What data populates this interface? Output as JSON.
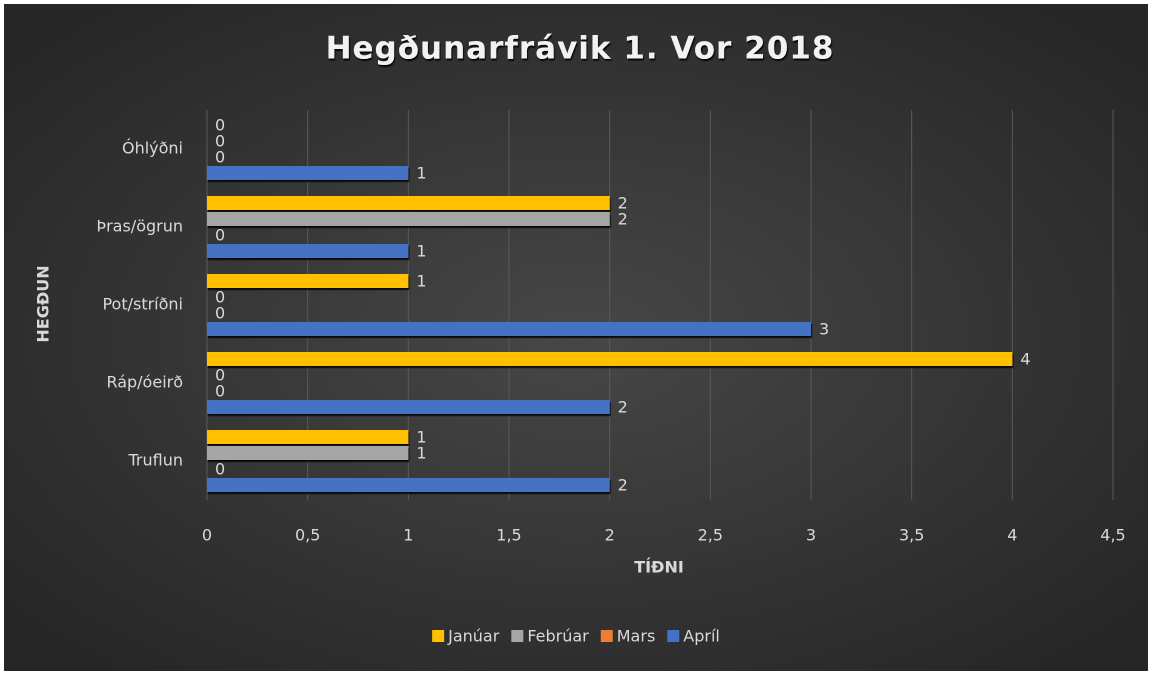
{
  "chart_data": {
    "type": "bar",
    "orientation": "horizontal",
    "title": "Hegðunarfrávik 1. Vor 2018",
    "x_label": "TÍÐNI",
    "y_label": "HEGÐUN",
    "categories": [
      "Truflun",
      "Ráp/óeirð",
      "Pot/stríðni",
      "Þras/ögrun",
      "Óhlýðni"
    ],
    "series": [
      {
        "name": "Janúar",
        "color": "#ffc000",
        "values": [
          1,
          4,
          1,
          2,
          0
        ]
      },
      {
        "name": "Febrúar",
        "color": "#a5a5a5",
        "values": [
          1,
          0,
          0,
          2,
          0
        ]
      },
      {
        "name": "Mars",
        "color": "#ed7d31",
        "values": [
          0,
          0,
          0,
          0,
          0
        ]
      },
      {
        "name": "Apríl",
        "color": "#4472c4",
        "values": [
          2,
          2,
          3,
          1,
          1
        ]
      }
    ],
    "xlim": [
      0,
      4.5
    ],
    "xticks": [
      0,
      {
        "value": 0.5,
        "label": "0,5"
      },
      1,
      {
        "value": 1.5,
        "label": "1,5"
      },
      2,
      {
        "value": 2.5,
        "label": "2,5"
      },
      3,
      {
        "value": 3.5,
        "label": "3,5"
      },
      4,
      {
        "value": 4.5,
        "label": "4,5"
      }
    ],
    "grid": true,
    "legend": "bottom"
  }
}
